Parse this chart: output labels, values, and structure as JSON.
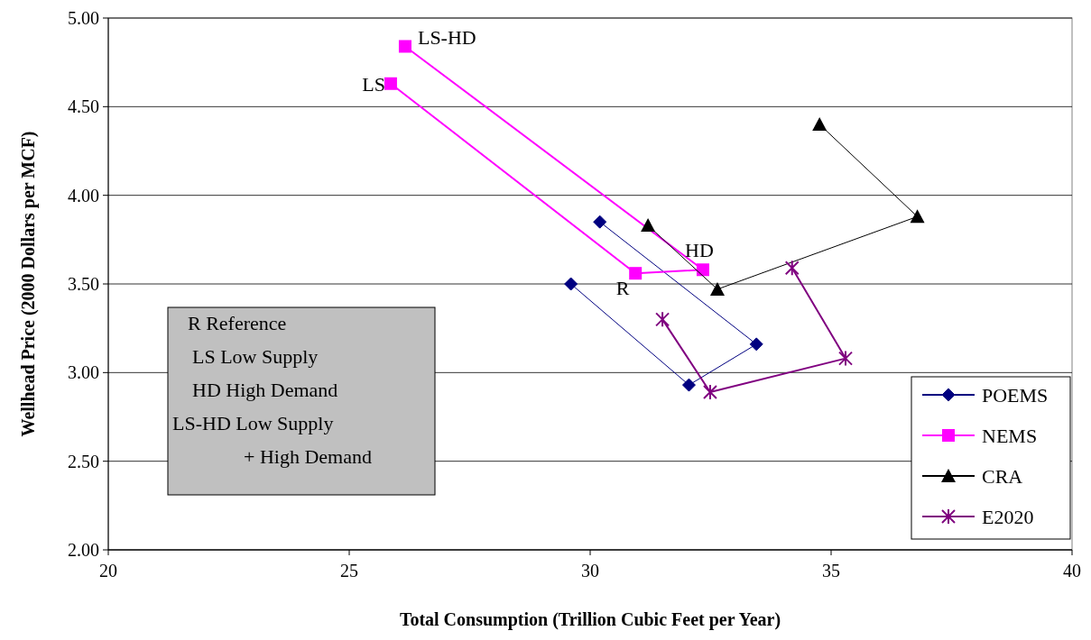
{
  "chart_data": {
    "type": "line",
    "xlabel": "Total Consumption (Trillion Cubic Feet per Year)",
    "ylabel": "Wellhead Price (2000 Dollars per MCF)",
    "xlim": [
      20,
      40
    ],
    "xticks": [
      20,
      25,
      30,
      35,
      40
    ],
    "ylim": [
      2,
      5
    ],
    "yticks": [
      {
        "value": 2,
        "label": "2.00"
      },
      {
        "value": 2.5,
        "label": "2.50"
      },
      {
        "value": 3,
        "label": "3.00"
      },
      {
        "value": 3.5,
        "label": "3.50"
      },
      {
        "value": 4,
        "label": "4.00"
      },
      {
        "value": 4.5,
        "label": "4.50"
      },
      {
        "value": 5,
        "label": "5.00"
      }
    ],
    "grid": "y",
    "legend": "bottom right",
    "series": [
      {
        "name": "POEMS",
        "color": "#000080",
        "marker": "diamond",
        "x": [
          30.2,
          33.45,
          32.05,
          29.6
        ],
        "values": [
          3.85,
          3.16,
          2.93,
          3.5
        ]
      },
      {
        "name": "NEMS",
        "color": "#ff00ff",
        "marker": "square",
        "x": [
          25.86,
          30.94,
          32.34,
          26.16
        ],
        "values": [
          4.63,
          3.56,
          3.58,
          4.84
        ]
      },
      {
        "name": "CRA",
        "color": "#000000",
        "marker": "triangle",
        "x": [
          31.2,
          32.64,
          36.79,
          34.76
        ],
        "values": [
          3.83,
          3.47,
          3.88,
          4.4
        ]
      },
      {
        "name": "E2020",
        "color": "#800080",
        "marker": "cross",
        "x": [
          31.5,
          32.49,
          35.3,
          34.19
        ],
        "values": [
          3.3,
          2.89,
          3.08,
          3.59
        ]
      }
    ],
    "annotations": [
      {
        "text": "LS-HD",
        "x": 26.16,
        "y": 4.84
      },
      {
        "text": "LS",
        "x": 25.86,
        "y": 4.63
      },
      {
        "text": "HD",
        "x": 32.34,
        "y": 3.58
      },
      {
        "text": "R",
        "x": 30.94,
        "y": 3.56
      },
      "R  Reference",
      "LS  Low Supply",
      "HD  High Demand",
      "LS-HD  Low Supply",
      "+ High Demand"
    ]
  }
}
